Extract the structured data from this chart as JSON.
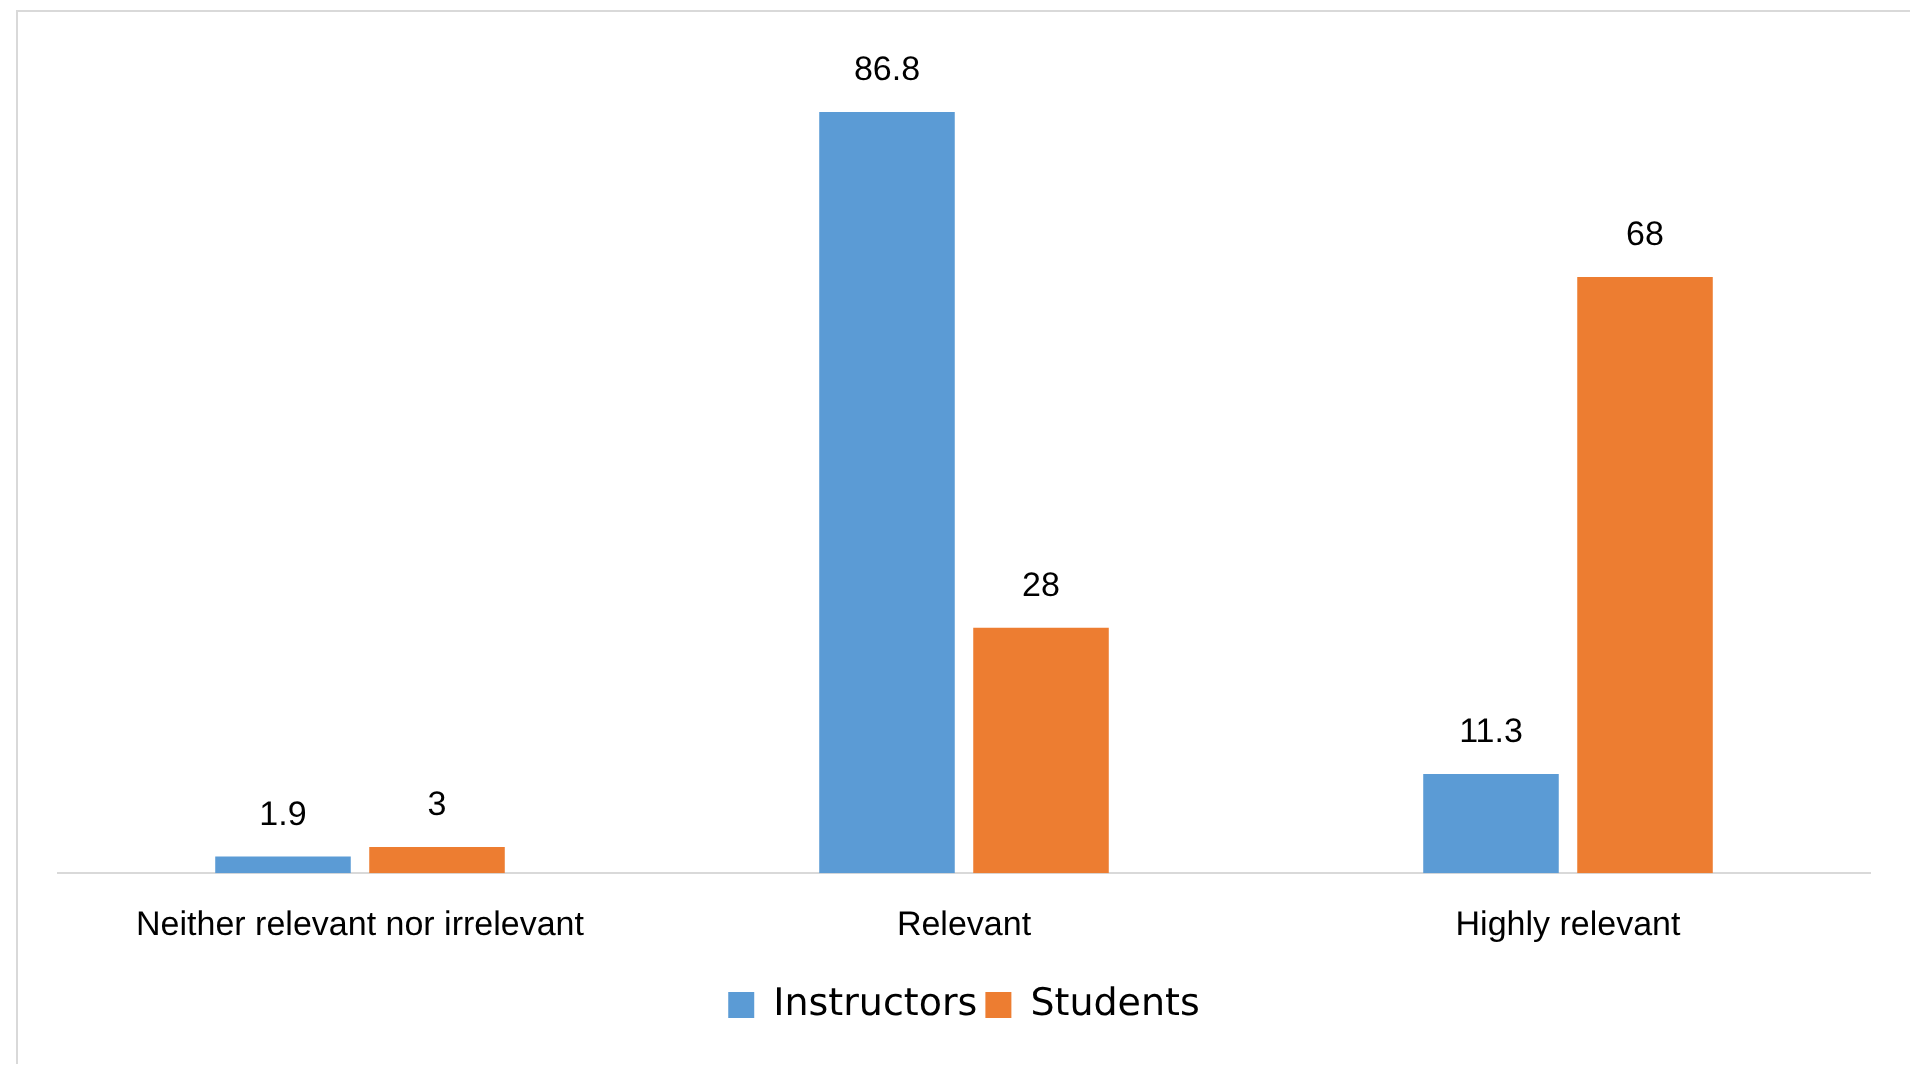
{
  "chart_data": {
    "type": "bar",
    "categories": [
      "Neither relevant nor irrelevant",
      "Relevant",
      "Highly relevant"
    ],
    "series": [
      {
        "name": "Instructors",
        "color": "#5b9bd5",
        "values": [
          1.9,
          86.8,
          11.3
        ]
      },
      {
        "name": "Students",
        "color": "#ed7d31",
        "values": [
          3,
          28,
          68
        ]
      }
    ],
    "data_labels": true,
    "legend": "bottom",
    "tick_labels": "x"
  }
}
